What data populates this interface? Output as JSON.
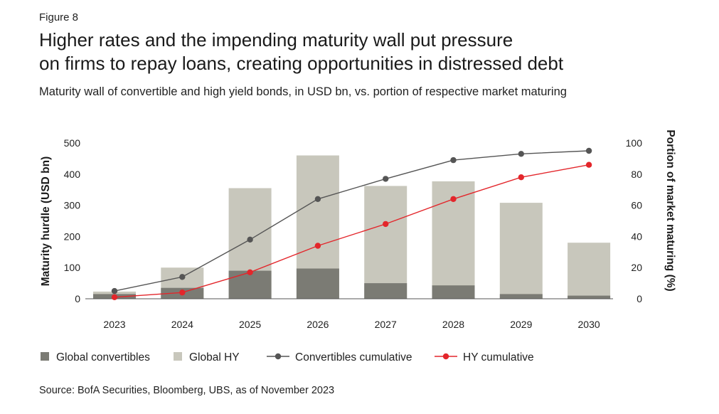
{
  "figure_label": "Figure 8",
  "title_line1": "Higher rates and the impending maturity wall put pressure",
  "title_line2": "on firms to repay loans, creating opportunities in distressed debt",
  "subtitle": "Maturity wall of convertible and high yield bonds, in USD bn, vs. portion of respective market maturing",
  "source": "Source: BofA Securities, Bloomberg, UBS, as of November 2023",
  "chart_data": {
    "type": "bar",
    "categories": [
      "2023",
      "2024",
      "2025",
      "2026",
      "2027",
      "2028",
      "2029",
      "2030"
    ],
    "series": [
      {
        "name": "Global convertibles",
        "kind": "bar",
        "axis": "left",
        "values": [
          15,
          35,
          90,
          97,
          50,
          43,
          15,
          10
        ],
        "color": "#7b7b74"
      },
      {
        "name": "Global HY",
        "kind": "bar",
        "axis": "left",
        "values": [
          23,
          100,
          355,
          460,
          362,
          377,
          308,
          180
        ],
        "color": "#c8c7bc"
      },
      {
        "name": "Convertibles cumulative",
        "kind": "line",
        "axis": "right",
        "values": [
          5,
          14,
          38,
          64,
          77,
          89,
          93,
          95
        ],
        "color": "#555555"
      },
      {
        "name": "HY cumulative",
        "kind": "line",
        "axis": "right",
        "values": [
          1,
          4,
          17,
          34,
          48,
          64,
          78,
          86
        ],
        "color": "#e3262b"
      }
    ],
    "ylabel": "Maturity hurdle (USD bn)",
    "y2label": "Portion of market maturing (%)",
    "ylim": [
      0,
      500
    ],
    "y2lim": [
      0,
      100
    ],
    "yticks": [
      0,
      100,
      200,
      300,
      400,
      500
    ],
    "y2ticks": [
      0,
      20,
      40,
      60,
      80,
      100
    ],
    "grid": false,
    "legend_position": "bottom"
  }
}
